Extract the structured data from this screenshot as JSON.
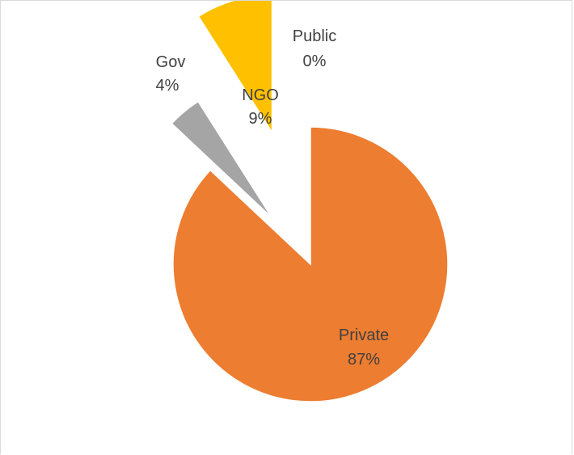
{
  "chart_data": {
    "type": "pie",
    "exploded": true,
    "slices": [
      {
        "name": "Private",
        "value": 87,
        "label": "87%",
        "color": "#ED7D31"
      },
      {
        "name": "Gov",
        "value": 4,
        "label": "4%",
        "color": "#A5A5A5"
      },
      {
        "name": "NGO",
        "value": 9,
        "label": "9%",
        "color": "#FFC000"
      },
      {
        "name": "Public",
        "value": 0,
        "label": "0%",
        "color": "#5B9BD5"
      }
    ],
    "title": "",
    "legend": "none"
  }
}
